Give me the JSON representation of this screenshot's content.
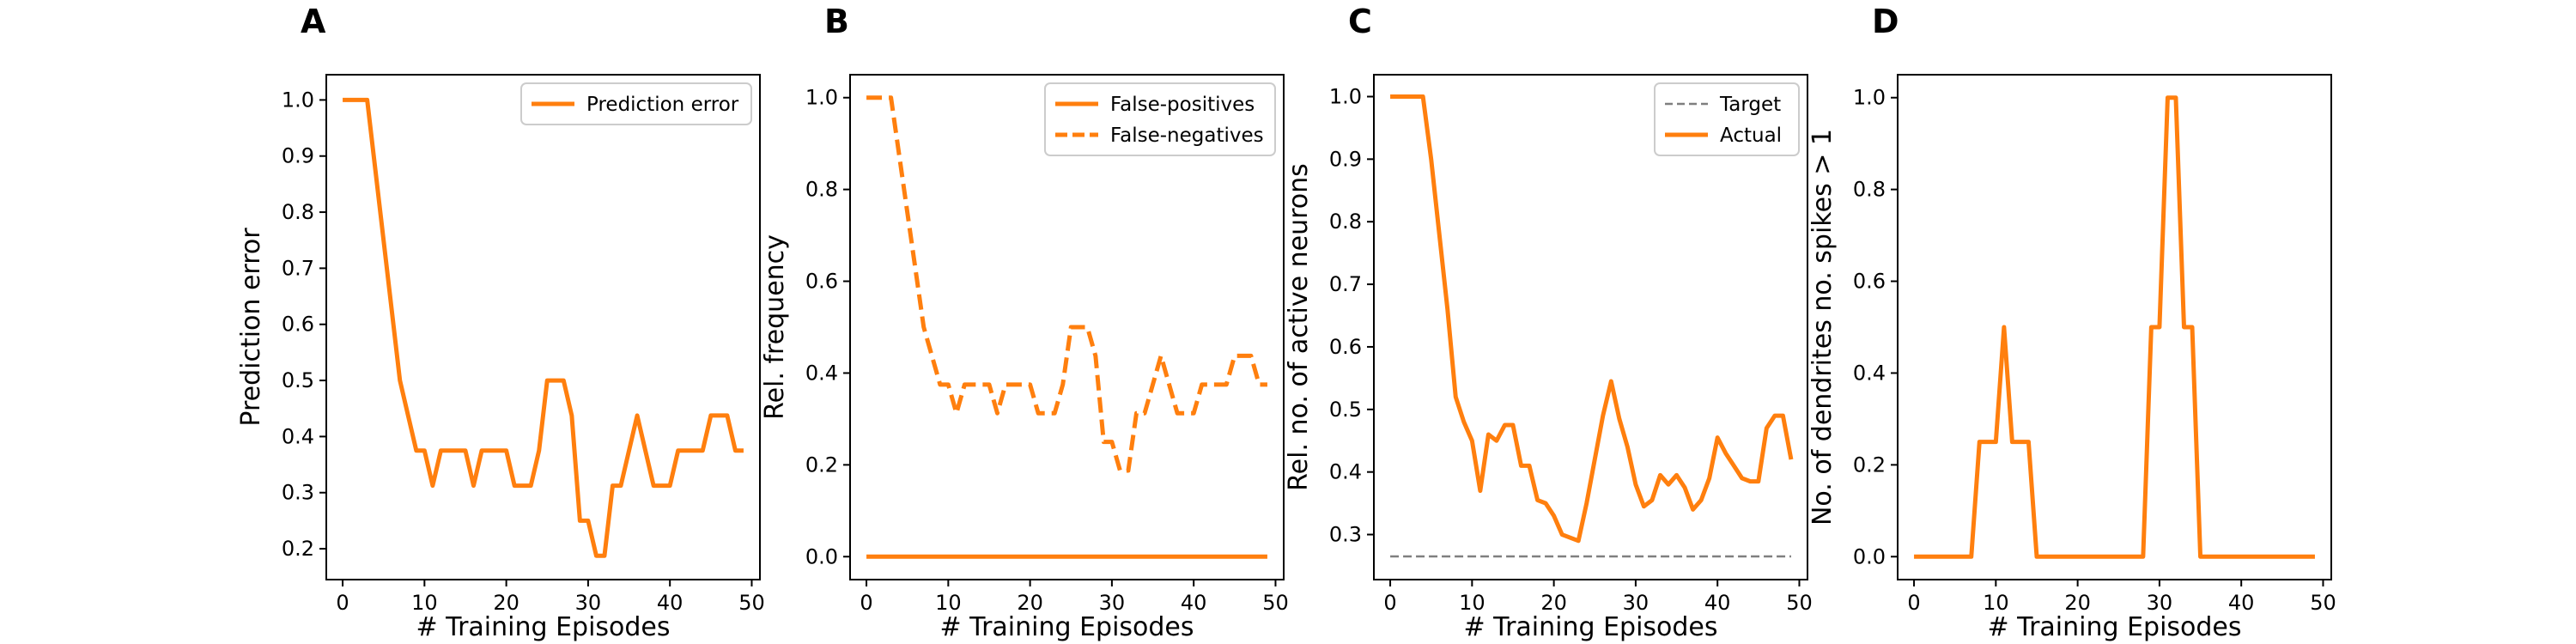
{
  "colors": {
    "series": "#ff7f0e",
    "target": "#7f7f7f",
    "axes": "#000000"
  },
  "chart_data": [
    {
      "letter": "A",
      "type": "line",
      "xlabel": "# Training Episodes",
      "ylabel": "Prediction error",
      "xlim": [
        -2,
        51
      ],
      "ylim": [
        0.145,
        1.045
      ],
      "xticks": [
        0,
        10,
        20,
        30,
        40,
        50
      ],
      "yticks": [
        0.2,
        0.3,
        0.4,
        0.5,
        0.6,
        0.7,
        0.8,
        0.9,
        1.0
      ],
      "ytick_format": 1,
      "legend": "top-right",
      "series": [
        {
          "name": "Prediction error",
          "style": "solid",
          "x": [
            0,
            1,
            2,
            3,
            4,
            5,
            6,
            7,
            8,
            9,
            10,
            11,
            12,
            13,
            14,
            15,
            16,
            17,
            18,
            19,
            20,
            21,
            22,
            23,
            24,
            25,
            26,
            27,
            28,
            29,
            30,
            31,
            32,
            33,
            34,
            35,
            36,
            37,
            38,
            39,
            40,
            41,
            42,
            43,
            44,
            45,
            46,
            47,
            48,
            49
          ],
          "values": [
            1.0,
            1.0,
            1.0,
            1.0,
            0.875,
            0.75,
            0.625,
            0.5,
            0.4375,
            0.375,
            0.375,
            0.3125,
            0.375,
            0.375,
            0.375,
            0.375,
            0.3125,
            0.375,
            0.375,
            0.375,
            0.375,
            0.3125,
            0.3125,
            0.3125,
            0.375,
            0.5,
            0.5,
            0.5,
            0.4375,
            0.25,
            0.25,
            0.1875,
            0.1875,
            0.3125,
            0.3125,
            0.375,
            0.4375,
            0.375,
            0.3125,
            0.3125,
            0.3125,
            0.375,
            0.375,
            0.375,
            0.375,
            0.4375,
            0.4375,
            0.4375,
            0.375,
            0.375
          ]
        }
      ]
    },
    {
      "letter": "B",
      "type": "line",
      "xlabel": "# Training Episodes",
      "ylabel": "Rel. frequency",
      "xlim": [
        -2,
        51
      ],
      "ylim": [
        -0.05,
        1.05
      ],
      "xticks": [
        0,
        10,
        20,
        30,
        40,
        50
      ],
      "yticks": [
        0.0,
        0.2,
        0.4,
        0.6,
        0.8,
        1.0
      ],
      "ytick_format": 1,
      "legend": "top-right",
      "series": [
        {
          "name": "False-positives",
          "style": "solid",
          "x": [
            0,
            1,
            2,
            3,
            4,
            5,
            6,
            7,
            8,
            9,
            10,
            11,
            12,
            13,
            14,
            15,
            16,
            17,
            18,
            19,
            20,
            21,
            22,
            23,
            24,
            25,
            26,
            27,
            28,
            29,
            30,
            31,
            32,
            33,
            34,
            35,
            36,
            37,
            38,
            39,
            40,
            41,
            42,
            43,
            44,
            45,
            46,
            47,
            48,
            49
          ],
          "values": [
            0,
            0,
            0,
            0,
            0,
            0,
            0,
            0,
            0,
            0,
            0,
            0,
            0,
            0,
            0,
            0,
            0,
            0,
            0,
            0,
            0,
            0,
            0,
            0,
            0,
            0,
            0,
            0,
            0,
            0,
            0,
            0,
            0,
            0,
            0,
            0,
            0,
            0,
            0,
            0,
            0,
            0,
            0,
            0,
            0,
            0,
            0,
            0,
            0,
            0
          ]
        },
        {
          "name": "False-negatives",
          "style": "dashed",
          "x": [
            0,
            1,
            2,
            3,
            4,
            5,
            6,
            7,
            8,
            9,
            10,
            11,
            12,
            13,
            14,
            15,
            16,
            17,
            18,
            19,
            20,
            21,
            22,
            23,
            24,
            25,
            26,
            27,
            28,
            29,
            30,
            31,
            32,
            33,
            34,
            35,
            36,
            37,
            38,
            39,
            40,
            41,
            42,
            43,
            44,
            45,
            46,
            47,
            48,
            49
          ],
          "values": [
            1.0,
            1.0,
            1.0,
            1.0,
            0.875,
            0.75,
            0.625,
            0.5,
            0.4375,
            0.375,
            0.375,
            0.3125,
            0.375,
            0.375,
            0.375,
            0.375,
            0.3125,
            0.375,
            0.375,
            0.375,
            0.375,
            0.3125,
            0.3125,
            0.3125,
            0.375,
            0.5,
            0.5,
            0.5,
            0.4375,
            0.25,
            0.25,
            0.1875,
            0.1875,
            0.3125,
            0.3125,
            0.375,
            0.4375,
            0.375,
            0.3125,
            0.3125,
            0.3125,
            0.375,
            0.375,
            0.375,
            0.375,
            0.4375,
            0.4375,
            0.4375,
            0.375,
            0.375
          ]
        }
      ]
    },
    {
      "letter": "C",
      "type": "line",
      "xlabel": "# Training Episodes",
      "ylabel": "Rel. no. of active neurons",
      "xlim": [
        -2,
        51
      ],
      "ylim": [
        0.228,
        1.035
      ],
      "xticks": [
        0,
        10,
        20,
        30,
        40,
        50
      ],
      "yticks": [
        0.3,
        0.4,
        0.5,
        0.6,
        0.7,
        0.8,
        0.9,
        1.0
      ],
      "ytick_format": 1,
      "legend": "top-right",
      "series": [
        {
          "name": "Target",
          "style": "dashed-thin",
          "color": "target",
          "x": [
            0,
            49
          ],
          "values": [
            0.265,
            0.265
          ]
        },
        {
          "name": "Actual",
          "style": "solid",
          "x": [
            0,
            1,
            2,
            3,
            4,
            5,
            6,
            7,
            8,
            9,
            10,
            11,
            12,
            13,
            14,
            15,
            16,
            17,
            18,
            19,
            20,
            21,
            22,
            23,
            24,
            25,
            26,
            27,
            28,
            29,
            30,
            31,
            32,
            33,
            34,
            35,
            36,
            37,
            38,
            39,
            40,
            41,
            42,
            43,
            44,
            45,
            46,
            47,
            48,
            49
          ],
          "values": [
            1.0,
            1.0,
            1.0,
            1.0,
            1.0,
            0.9,
            0.78,
            0.66,
            0.52,
            0.48,
            0.45,
            0.37,
            0.46,
            0.45,
            0.475,
            0.475,
            0.41,
            0.41,
            0.355,
            0.35,
            0.33,
            0.3,
            0.295,
            0.29,
            0.35,
            0.42,
            0.49,
            0.545,
            0.485,
            0.44,
            0.38,
            0.345,
            0.355,
            0.395,
            0.38,
            0.395,
            0.375,
            0.34,
            0.355,
            0.39,
            0.455,
            0.43,
            0.41,
            0.39,
            0.385,
            0.385,
            0.47,
            0.49,
            0.49,
            0.42
          ]
        }
      ]
    },
    {
      "letter": "D",
      "type": "line",
      "xlabel": "# Training Episodes",
      "ylabel": "No. of dendrites no. spikes > 1",
      "xlim": [
        -2,
        51
      ],
      "ylim": [
        -0.05,
        1.05
      ],
      "xticks": [
        0,
        10,
        20,
        30,
        40,
        50
      ],
      "yticks": [
        0.0,
        0.2,
        0.4,
        0.6,
        0.8,
        1.0
      ],
      "ytick_format": 1,
      "legend": "none",
      "series": [
        {
          "name": "",
          "style": "solid",
          "x": [
            0,
            1,
            2,
            3,
            4,
            5,
            6,
            7,
            8,
            9,
            10,
            11,
            12,
            13,
            14,
            15,
            16,
            17,
            18,
            19,
            20,
            21,
            22,
            23,
            24,
            25,
            26,
            27,
            28,
            29,
            30,
            31,
            32,
            33,
            34,
            35,
            36,
            37,
            38,
            39,
            40,
            41,
            42,
            43,
            44,
            45,
            46,
            47,
            48,
            49
          ],
          "values": [
            0,
            0,
            0,
            0,
            0,
            0,
            0,
            0,
            0.25,
            0.25,
            0.25,
            0.5,
            0.25,
            0.25,
            0.25,
            0,
            0,
            0,
            0,
            0,
            0,
            0,
            0,
            0,
            0,
            0,
            0,
            0,
            0,
            0.5,
            0.5,
            1.0,
            1.0,
            0.5,
            0.5,
            0,
            0,
            0,
            0,
            0,
            0,
            0,
            0,
            0,
            0,
            0,
            0,
            0,
            0,
            0
          ]
        }
      ]
    }
  ]
}
